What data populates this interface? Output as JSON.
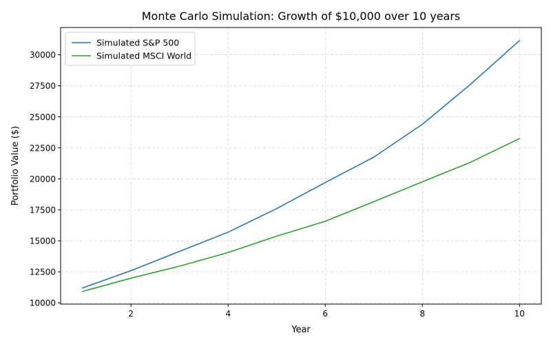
{
  "chart_data": {
    "type": "line",
    "title": "Monte Carlo Simulation: Growth of $10,000 over 10 years",
    "xlabel": "Year",
    "ylabel": "Portfolio Value ($)",
    "x": [
      1,
      2,
      3,
      4,
      5,
      6,
      7,
      8,
      9,
      10
    ],
    "xlim": [
      0.55,
      10.45
    ],
    "ylim": [
      9900,
      32200
    ],
    "xticks": [
      2,
      4,
      6,
      8,
      10
    ],
    "yticks": [
      10000,
      12500,
      15000,
      17500,
      20000,
      22500,
      25000,
      27500,
      30000
    ],
    "grid": true,
    "legend_position": "upper left",
    "series": [
      {
        "name": "Simulated S&P 500",
        "color": "#1f77b4",
        "values": [
          11200,
          12600,
          14150,
          15700,
          17600,
          19700,
          21750,
          24400,
          27650,
          31150
        ]
      },
      {
        "name": "Simulated MSCI World",
        "color": "#2ca02c",
        "values": [
          10920,
          11990,
          12960,
          14060,
          15380,
          16580,
          18160,
          19760,
          21350,
          23250
        ]
      }
    ]
  }
}
